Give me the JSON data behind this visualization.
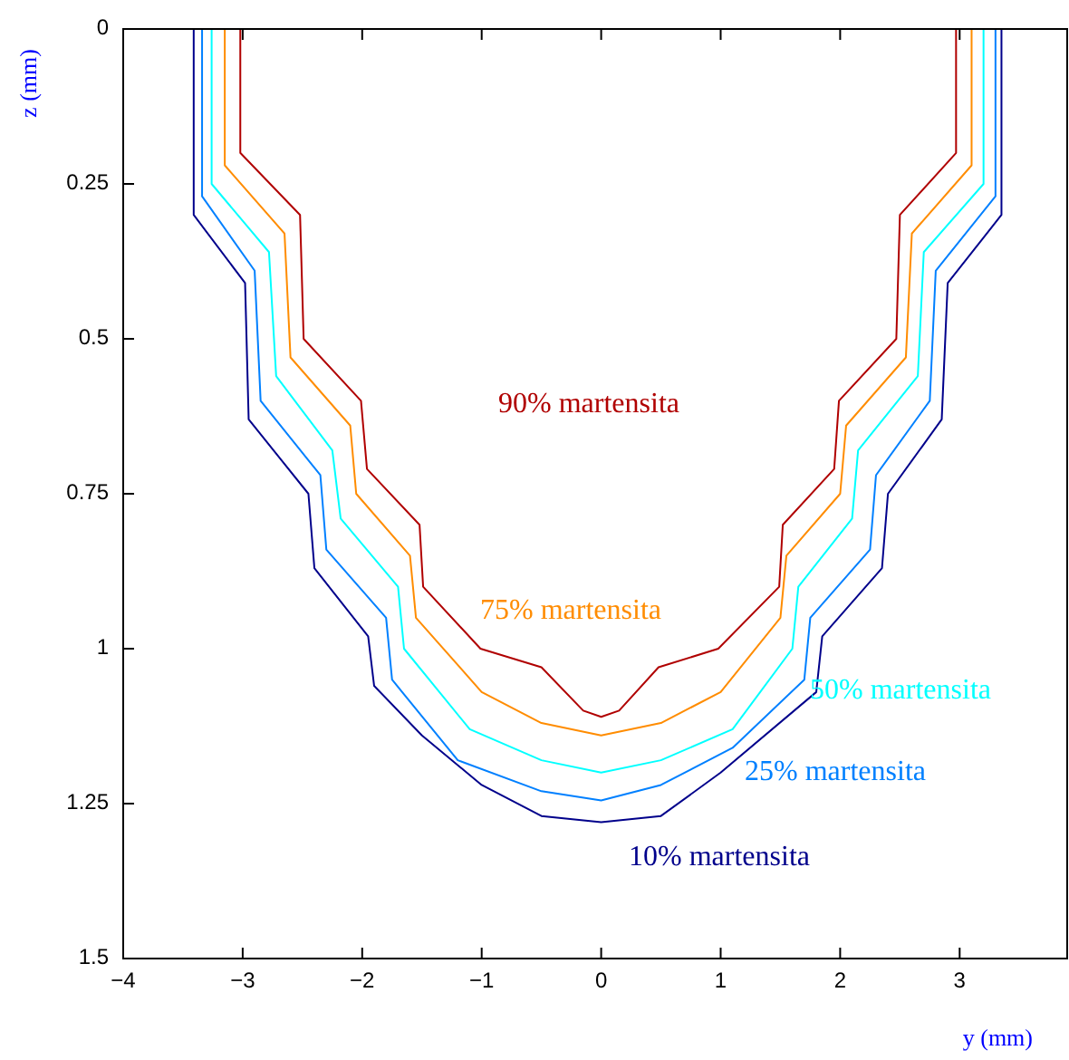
{
  "chart_data": {
    "type": "line",
    "xlabel": "y (mm)",
    "ylabel": "z (mm)",
    "xlim": [
      -4,
      3.9
    ],
    "ylim": [
      1.5,
      0
    ],
    "xticks": [
      -4,
      -3,
      -2,
      -1,
      0,
      1,
      2,
      3
    ],
    "yticks": [
      0,
      {
        "value": 0.25,
        "label": "0.25"
      },
      {
        "value": 0.5,
        "label": "0.5"
      },
      {
        "value": 0.75,
        "label": "0.75"
      },
      1,
      {
        "value": 1.25,
        "label": "1.25"
      },
      {
        "value": 1.5,
        "label": "1.5"
      }
    ],
    "grid": false,
    "line_style": "solid",
    "marker": "none",
    "series": [
      {
        "name": "90% martensita",
        "color": "#b00000",
        "x": [
          -3.02,
          -3.02,
          -2.52,
          -2.49,
          -2.01,
          -1.96,
          -1.52,
          -1.49,
          -1.01,
          -0.5,
          -0.15,
          0,
          0.15,
          0.48,
          0.98,
          1.49,
          1.52,
          1.95,
          1.99,
          2.47,
          2.5,
          2.97,
          2.97
        ],
        "values": [
          0,
          0.2,
          0.3,
          0.5,
          0.6,
          0.71,
          0.8,
          0.9,
          1.0,
          1.03,
          1.1,
          1.11,
          1.1,
          1.03,
          1.0,
          0.9,
          0.8,
          0.71,
          0.6,
          0.5,
          0.3,
          0.2,
          0
        ]
      },
      {
        "name": "75% martensita",
        "color": "#ff8c00",
        "x": [
          -3.15,
          -3.15,
          -2.65,
          -2.6,
          -2.1,
          -2.05,
          -1.6,
          -1.55,
          -1.0,
          -0.5,
          0,
          0.5,
          1.0,
          1.5,
          1.55,
          2.0,
          2.05,
          2.55,
          2.6,
          3.1,
          3.1
        ],
        "values": [
          0,
          0.22,
          0.33,
          0.53,
          0.64,
          0.75,
          0.85,
          0.95,
          1.07,
          1.12,
          1.14,
          1.12,
          1.07,
          0.95,
          0.85,
          0.75,
          0.64,
          0.53,
          0.33,
          0.22,
          0
        ]
      },
      {
        "name": "50% martensita",
        "color": "#00ffff",
        "x": [
          -3.26,
          -3.26,
          -2.78,
          -2.72,
          -2.25,
          -2.18,
          -1.7,
          -1.65,
          -1.1,
          -0.5,
          0,
          0.5,
          1.1,
          1.6,
          1.65,
          2.1,
          2.15,
          2.65,
          2.7,
          3.2,
          3.2
        ],
        "values": [
          0,
          0.25,
          0.36,
          0.56,
          0.68,
          0.79,
          0.9,
          1.0,
          1.13,
          1.18,
          1.2,
          1.18,
          1.13,
          1.0,
          0.9,
          0.79,
          0.68,
          0.56,
          0.36,
          0.25,
          0
        ]
      },
      {
        "name": "25% martensita",
        "color": "#0080ff",
        "x": [
          -3.34,
          -3.34,
          -2.9,
          -2.85,
          -2.35,
          -2.3,
          -1.8,
          -1.75,
          -1.2,
          -0.5,
          0,
          0.5,
          1.1,
          1.7,
          1.75,
          2.25,
          2.3,
          2.75,
          2.8,
          3.3,
          3.3
        ],
        "values": [
          0,
          0.27,
          0.39,
          0.6,
          0.72,
          0.84,
          0.95,
          1.05,
          1.18,
          1.23,
          1.245,
          1.22,
          1.16,
          1.05,
          0.95,
          0.84,
          0.72,
          0.6,
          0.39,
          0.27,
          0
        ]
      },
      {
        "name": "10% martensita",
        "color": "#00008b",
        "x": [
          -3.41,
          -3.41,
          -2.98,
          -2.95,
          -2.45,
          -2.4,
          -1.95,
          -1.9,
          -1.5,
          -1.0,
          -0.5,
          0,
          0.5,
          1.0,
          1.8,
          1.85,
          2.35,
          2.4,
          2.85,
          2.9,
          3.35,
          3.35
        ],
        "values": [
          0,
          0.3,
          0.41,
          0.63,
          0.75,
          0.87,
          0.98,
          1.06,
          1.14,
          1.22,
          1.27,
          1.28,
          1.27,
          1.2,
          1.07,
          0.98,
          0.87,
          0.75,
          0.63,
          0.41,
          0.3,
          0
        ]
      }
    ]
  }
}
